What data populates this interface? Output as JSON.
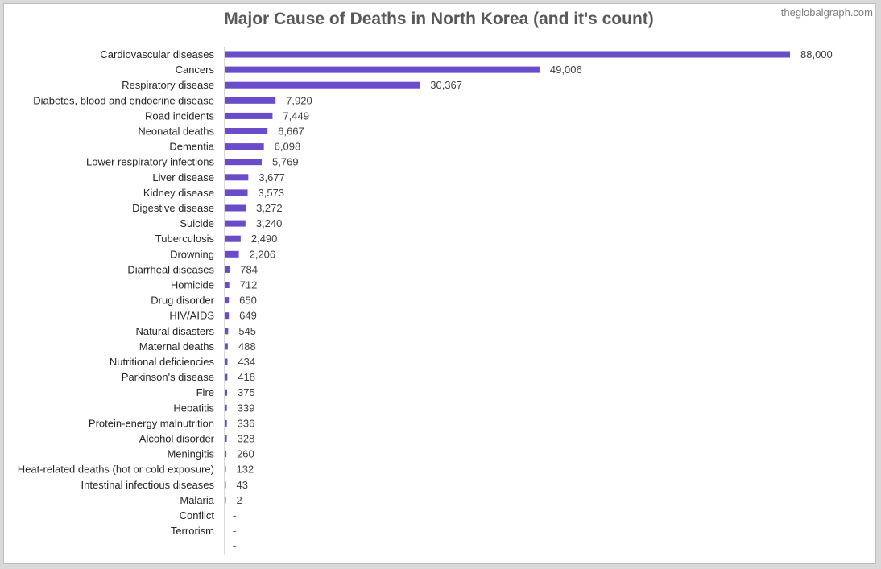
{
  "watermark": "theglobalgraph.com",
  "chart_data": {
    "type": "bar",
    "orientation": "horizontal",
    "title": "Major Cause of Deaths in North Korea (and it's count)",
    "xlabel": "",
    "ylabel": "",
    "xlim": [
      0,
      88000
    ],
    "grid": false,
    "legend": "none",
    "bar_color": "#6a4bc9",
    "categories": [
      "Cardiovascular diseases",
      "Cancers",
      "Respiratory disease",
      "Diabetes, blood and endocrine disease",
      "Road incidents",
      "Neonatal deaths",
      "Dementia",
      "Lower respiratory infections",
      "Liver disease",
      "Kidney disease",
      "Digestive disease",
      "Suicide",
      "Tuberculosis",
      "Drowning",
      "Diarrheal diseases",
      "Homicide",
      "Drug disorder",
      "HIV/AIDS",
      "Natural disasters",
      "Maternal deaths",
      "Nutritional deficiencies",
      "Parkinson's disease",
      "Fire",
      "Hepatitis",
      "Protein-energy malnutrition",
      "Alcohol disorder",
      "Meningitis",
      "Heat-related deaths (hot or cold exposure)",
      "Intestinal infectious diseases",
      "Malaria",
      "Conflict",
      "Terrorism",
      ""
    ],
    "values": [
      88000,
      49006,
      30367,
      7920,
      7449,
      6667,
      6098,
      5769,
      3677,
      3573,
      3272,
      3240,
      2490,
      2206,
      784,
      712,
      650,
      649,
      545,
      488,
      434,
      418,
      375,
      339,
      336,
      328,
      260,
      132,
      43,
      2,
      0,
      0,
      0
    ],
    "labels": [
      "88,000",
      "49,006",
      "30,367",
      "7,920",
      "7,449",
      "6,667",
      "6,098",
      "5,769",
      "3,677",
      "3,573",
      "3,272",
      "3,240",
      "2,490",
      "2,206",
      "784",
      "712",
      "650",
      "649",
      "545",
      "488",
      "434",
      "418",
      "375",
      "339",
      "336",
      "328",
      "260",
      "132",
      "43",
      "2",
      "-",
      "-",
      "-"
    ]
  }
}
